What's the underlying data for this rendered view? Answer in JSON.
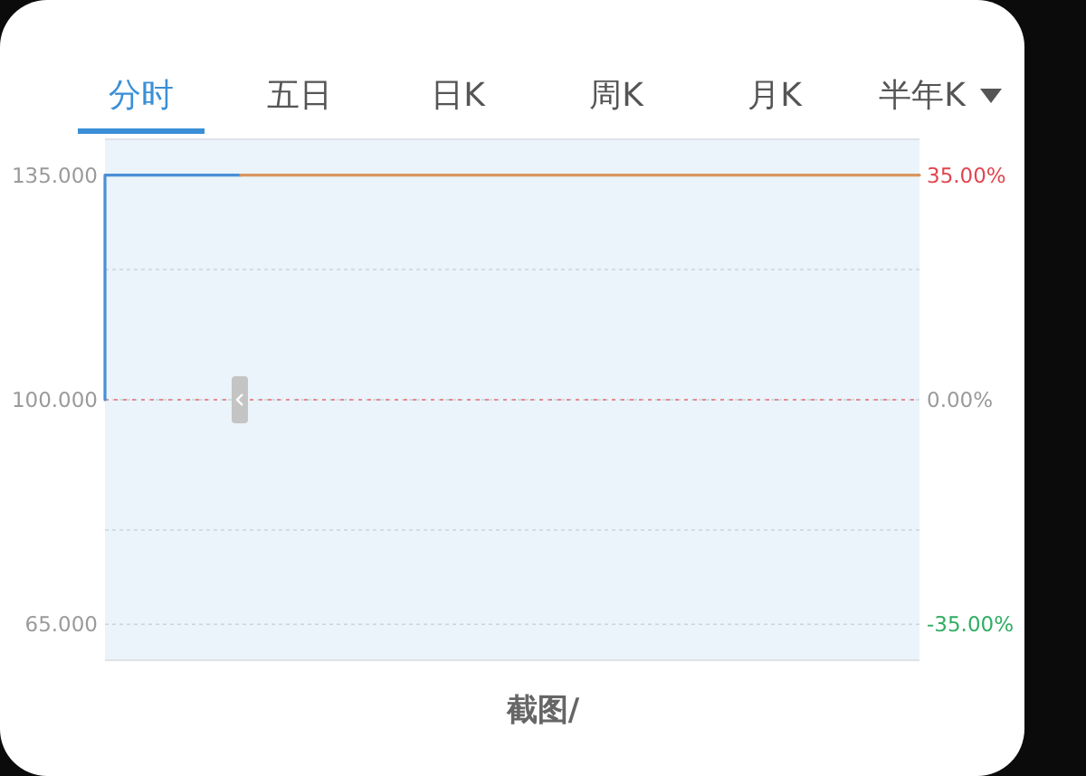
{
  "chart_data": {
    "type": "line",
    "annotations": [
      "分时",
      "五日",
      "日K",
      "周K",
      "月K",
      "半年K",
      "截图/"
    ],
    "categories": [
      null,
      null,
      null,
      null,
      null,
      null,
      null,
      null,
      null,
      null,
      null,
      null,
      null,
      null,
      null,
      null,
      null,
      null,
      null,
      null,
      null,
      null,
      null,
      null,
      null
    ],
    "series": [
      {
        "type": "step",
        "color": "#4a8fd6",
        "values": [
          100,
          135,
          135,
          135,
          135,
          null,
          null,
          null,
          null,
          null,
          null,
          null,
          null,
          null,
          null,
          null,
          null,
          null,
          null,
          null,
          null,
          null,
          null,
          null,
          null
        ]
      },
      {
        "color": "#d9975f",
        "values": [
          null,
          null,
          null,
          null,
          135,
          135,
          135,
          135,
          135,
          135,
          135,
          135,
          135,
          135,
          135,
          135,
          135,
          135,
          135,
          135,
          135,
          135,
          135,
          135,
          135
        ]
      }
    ],
    "ylim": [
      59.4,
      140.6
    ],
    "yticks": [
      {
        "value": 65,
        "label": "65.000"
      },
      {
        "value": 79.7,
        "label": null
      },
      {
        "value": 100,
        "label": "100.000"
      },
      {
        "value": 120.3,
        "label": null
      },
      {
        "value": 135,
        "label": "135.000"
      }
    ],
    "y2lim": [
      -40.6,
      40.6
    ],
    "y2ticks": [
      {
        "value": -35,
        "label": "-35.00%"
      },
      {
        "value": 0,
        "label": "0.00%"
      },
      {
        "value": 35,
        "label": "35.00%"
      }
    ],
    "ref_lines": [
      {
        "axis": "y",
        "value": 100,
        "color": "#e58a8e",
        "line_style": "dotted"
      }
    ],
    "grid": "y"
  }
}
